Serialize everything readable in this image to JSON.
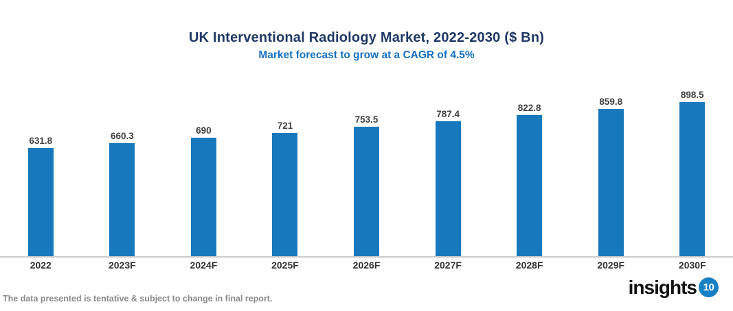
{
  "header": {
    "title": "UK Interventional Radiology Market, 2022-2030 ($ Bn)",
    "subtitle": "Market forecast to grow at a CAGR of 4.5%"
  },
  "chart_data": {
    "type": "bar",
    "title": "UK Interventional Radiology Market, 2022-2030 ($ Bn)",
    "subtitle": "Market forecast to grow at a CAGR of 4.5%",
    "categories": [
      "2022",
      "2023F",
      "2024F",
      "2025F",
      "2026F",
      "2027F",
      "2028F",
      "2029F",
      "2030F"
    ],
    "values": [
      631.8,
      660.3,
      690,
      721,
      753.5,
      787.4,
      822.8,
      859.8,
      898.5
    ],
    "value_labels": [
      "631.8",
      "660.3",
      "690",
      "721",
      "753.5",
      "787.4",
      "822.8",
      "859.8",
      "898.5"
    ],
    "xlabel": "",
    "ylabel": "",
    "ylim": [
      0,
      1000
    ],
    "grid": false,
    "legend": "none",
    "bar_color": "#1878bd",
    "value_label_color": "#3f3f3f",
    "axis_line_color": "#cbcbcb"
  },
  "footer": {
    "disclaimer": "The data presented is tentative & subject to change in final report.",
    "logo_text": "insights",
    "logo_badge": "10"
  },
  "colors": {
    "title": "#1f3864",
    "subtitle": "#1670c1",
    "bar": "#1878bd",
    "category_label": "#333333",
    "footer_text": "#8a8a8a",
    "logo_badge_bg": "#1a80c6"
  }
}
